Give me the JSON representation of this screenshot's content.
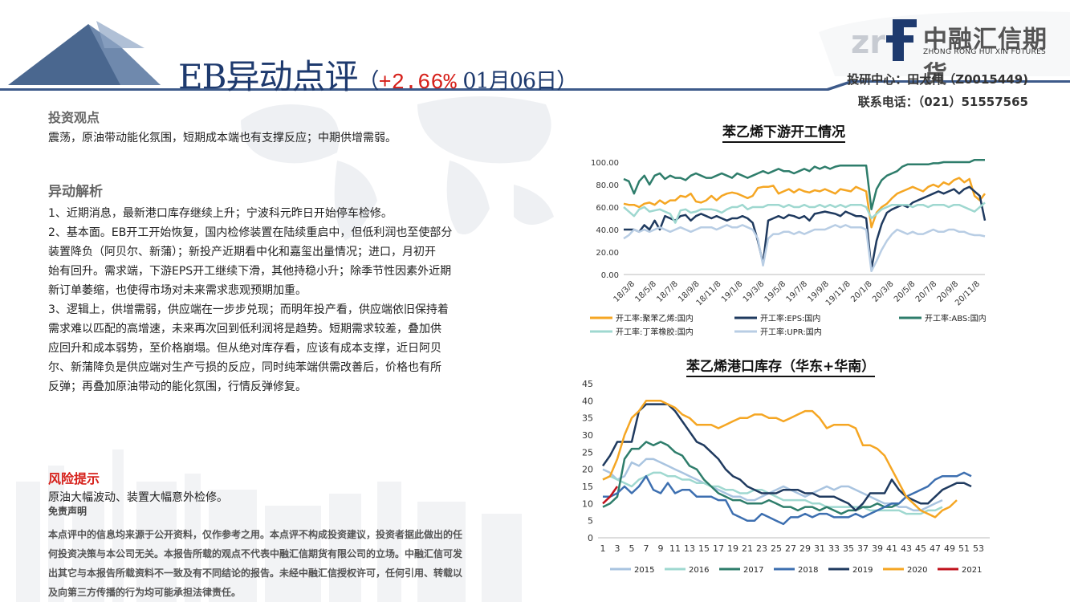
{
  "header": {
    "title_main": "EB异动点评",
    "title_open": "（",
    "change": "+2.66%",
    "date": "01月06日",
    "title_close": "）",
    "researcher": "投研中心：田大伟（Z0015449)",
    "phone": "联系电话：（021）51557565"
  },
  "logo": {
    "cn": "中融汇信期货",
    "en": "ZHONG RONG HUI XIN FUTURES",
    "mark": "zrf"
  },
  "sections": {
    "view_title": "投资观点",
    "view_text": "震荡，原油带动能化氛围，短期成本端也有支撑反应；中期供增需弱。",
    "analysis_title": "异动解析",
    "analysis_lines": [
      "1、近期消息，最新港口库存继续上升；宁波科元昨日开始停车检修。",
      "2、基本面。EB开工开始恢复，国内检修装置在陆续重启中，但低利润也至使部分",
      "装置降负（阿贝尔、新蒲）；新投产近期看中化和嘉玺出量情况；进口，月初开",
      "始有回升。需求端，下游EPS开工继续下滑，其他持稳小升；除季节性因素外近期",
      "新订单萎缩，也使得市场对未来需求悲观预期加重。",
      "3、逻辑上，供增需弱，供应端在一步步兑现；而明年投产看，供应端依旧保持着",
      "需求难以匹配的高增速，未来再次回到低利润将是趋势。短期需求较差，叠加供",
      "应回升和成本弱势，至价格崩塌。但从绝对库存看，应该有成本支撑，近日阿贝",
      "尔、新蒲降负是供应端对生产亏损的反应，同时纯苯端供需改善后，价格也有所",
      "反弹；再叠加原油带动的能化氛围，行情反弹修复。"
    ],
    "risk_title": "风险提示",
    "risk_text": "原油大幅波动、装置大幅意外检修。",
    "disclaimer_title": "免责声明",
    "disclaimer_lines": [
      "本点评中的信息均来源于公开资料，仅作参考之用。本点评不构成投资建议，投资者据此做出的任",
      "何投资决策与本公司无关。本报告所载的观点不代表中融汇信期货有限公司的立场。中融汇信可发",
      "出其它与本报告所载资料不一致及有不同结论的报告。未经中融汇信授权许可，任何引用、转载以",
      "及向第三方传播的行为均可能承担法律责任。"
    ]
  },
  "colors": {
    "title": "#1e3a6e",
    "accent_red": "#d6201a",
    "banner": "#3d5a8a"
  },
  "chart_data": [
    {
      "type": "line",
      "title": "苯乙烯下游开工情况",
      "yticks": [
        "0.00",
        "20.00",
        "40.00",
        "60.00",
        "80.00",
        "100.00"
      ],
      "ylim": [
        0,
        100
      ],
      "x_labels": [
        "18/3/8",
        "18/5/8",
        "18/7/8",
        "18/9/8",
        "18/11/8",
        "19/1/8",
        "19/3/8",
        "19/5/8",
        "19/7/8",
        "19/9/8",
        "19/11/8",
        "20/1/8",
        "20/3/8",
        "20/5/8",
        "20/7/8",
        "20/9/8",
        "20/11/8"
      ],
      "legend_position": "bottom",
      "series": [
        {
          "name": "开工率:聚苯乙烯:国内",
          "color": "#f5a623",
          "values": [
            63,
            62,
            62,
            60,
            63,
            64,
            62,
            66,
            63,
            66,
            66,
            70,
            69,
            72,
            65,
            64,
            66,
            70,
            66,
            70,
            72,
            73,
            72,
            70,
            68,
            70,
            77,
            78,
            78,
            79,
            72,
            74,
            76,
            73,
            76,
            74,
            73,
            75,
            74,
            76,
            74,
            72,
            76,
            75,
            74,
            78,
            76,
            74,
            42,
            55,
            60,
            63,
            68,
            72,
            74,
            76,
            78,
            76,
            74,
            78,
            80,
            78,
            82,
            80,
            84,
            86,
            82,
            85,
            70,
            66,
            72
          ]
        },
        {
          "name": "开工率:EPS:国内",
          "color": "#1f3a5f",
          "values": [
            40,
            40,
            40,
            38,
            44,
            40,
            48,
            40,
            52,
            50,
            48,
            52,
            53,
            48,
            52,
            54,
            52,
            50,
            52,
            50,
            48,
            50,
            50,
            52,
            50,
            46,
            30,
            10,
            48,
            50,
            52,
            50,
            53,
            52,
            50,
            52,
            48,
            54,
            55,
            56,
            55,
            54,
            52,
            56,
            54,
            52,
            52,
            50,
            5,
            30,
            45,
            55,
            58,
            60,
            62,
            60,
            64,
            66,
            68,
            70,
            72,
            74,
            72,
            74,
            76,
            72,
            76,
            78,
            74,
            70,
            48
          ]
        },
        {
          "name": "开工率:ABS:国内",
          "color": "#2e7d6b",
          "values": [
            85,
            83,
            72,
            83,
            88,
            80,
            88,
            90,
            85,
            88,
            86,
            86,
            84,
            88,
            90,
            88,
            86,
            86,
            88,
            90,
            88,
            86,
            90,
            88,
            86,
            88,
            90,
            92,
            90,
            92,
            94,
            92,
            92,
            90,
            92,
            94,
            92,
            96,
            94,
            96,
            94,
            96,
            97,
            97,
            97,
            97,
            97,
            97,
            58,
            76,
            84,
            88,
            90,
            92,
            96,
            98,
            98,
            98,
            98,
            98,
            99,
            99,
            100,
            100,
            100,
            100,
            100,
            100,
            102,
            102,
            102
          ]
        },
        {
          "name": "开工率:丁苯橡胶:国内",
          "color": "#9fd8d0",
          "values": [
            60,
            56,
            52,
            58,
            60,
            56,
            57,
            58,
            56,
            54,
            46,
            57,
            58,
            55,
            56,
            58,
            58,
            58,
            57,
            55,
            58,
            60,
            60,
            62,
            58,
            60,
            60,
            60,
            62,
            62,
            62,
            60,
            62,
            60,
            60,
            62,
            60,
            60,
            62,
            60,
            62,
            60,
            62,
            60,
            62,
            62,
            62,
            60,
            50,
            54,
            58,
            60,
            62,
            62,
            62,
            62,
            60,
            62,
            62,
            60,
            62,
            62,
            62,
            60,
            62,
            62,
            60,
            58,
            56,
            60,
            64
          ]
        },
        {
          "name": "开工率:UPR:国内",
          "color": "#b8cde4",
          "values": [
            32,
            35,
            40,
            38,
            40,
            38,
            40,
            42,
            40,
            38,
            40,
            42,
            40,
            38,
            40,
            42,
            42,
            42,
            40,
            42,
            44,
            42,
            42,
            44,
            42,
            40,
            32,
            8,
            32,
            36,
            36,
            38,
            38,
            36,
            38,
            36,
            38,
            40,
            40,
            40,
            42,
            44,
            42,
            44,
            42,
            42,
            42,
            40,
            3,
            12,
            22,
            30,
            36,
            40,
            38,
            36,
            38,
            36,
            36,
            38,
            40,
            38,
            38,
            40,
            40,
            38,
            38,
            36,
            35,
            35,
            34
          ]
        }
      ]
    },
    {
      "type": "line",
      "title": "苯乙烯港口库存（华东+华南）",
      "ylim": [
        0,
        45
      ],
      "yticks": [
        0,
        5,
        10,
        15,
        20,
        25,
        30,
        35,
        40,
        45
      ],
      "x_labels": [
        "1",
        "3",
        "5",
        "7",
        "9",
        "11",
        "13",
        "15",
        "17",
        "19",
        "21",
        "23",
        "25",
        "27",
        "29",
        "31",
        "33",
        "35",
        "37",
        "39",
        "41",
        "43",
        "45",
        "47",
        "49",
        "51",
        "53"
      ],
      "legend_position": "bottom",
      "series": [
        {
          "name": "2015",
          "color": "#a9c4e0",
          "values": [
            20,
            19,
            17,
            18,
            22,
            21,
            23,
            23,
            22,
            21,
            20,
            19,
            18,
            17,
            16,
            15,
            14,
            13,
            12,
            12,
            11,
            11,
            12,
            13,
            14,
            15,
            14,
            13,
            12,
            13,
            14,
            15,
            14,
            15,
            15,
            14,
            13,
            12,
            11,
            10,
            10,
            9,
            9,
            8,
            8,
            9,
            10,
            11
          ]
        },
        {
          "name": "2016",
          "color": "#9fd8d0",
          "values": [
            17,
            18,
            17,
            16,
            15,
            17,
            18,
            19,
            19,
            18,
            18,
            17,
            17,
            16,
            16,
            15,
            15,
            14,
            14,
            13,
            13,
            14,
            14,
            13,
            12,
            11,
            11,
            11,
            11,
            10,
            10,
            9,
            9,
            9,
            9,
            9,
            9,
            8,
            8,
            8,
            8,
            8,
            7,
            7,
            7,
            8,
            8,
            9
          ]
        },
        {
          "name": "2017",
          "color": "#2e7d6b",
          "values": [
            9,
            10,
            12,
            23,
            26,
            26,
            28,
            27,
            28,
            27,
            25,
            24,
            21,
            20,
            17,
            15,
            13,
            12,
            11,
            11,
            10,
            10,
            10,
            11,
            10,
            9,
            9,
            8,
            9,
            9,
            8,
            9,
            8,
            7,
            8,
            8,
            9,
            9,
            10,
            9,
            9,
            10
          ]
        },
        {
          "name": "2018",
          "color": "#3d6fb0",
          "values": [
            12,
            12,
            13,
            15,
            13,
            15,
            18,
            14,
            13,
            16,
            13,
            14,
            14,
            12,
            12,
            12,
            11,
            11,
            7,
            6,
            5,
            5,
            7,
            6,
            5,
            4,
            6,
            6,
            7,
            6,
            7,
            7,
            6,
            6,
            6,
            7,
            6,
            7,
            8,
            9,
            10,
            10,
            12,
            13,
            14,
            15,
            17,
            18,
            18,
            18,
            19,
            18
          ]
        },
        {
          "name": "2019",
          "color": "#1f3a5f",
          "values": [
            21,
            24,
            28,
            28,
            28,
            37,
            39,
            39,
            39,
            39,
            37,
            34,
            31,
            28,
            27,
            25,
            23,
            20,
            18,
            17,
            15,
            14,
            13,
            13,
            13,
            14,
            14,
            14,
            13,
            13,
            12,
            12,
            12,
            11,
            10,
            8,
            10,
            13,
            13,
            13,
            17,
            14,
            12,
            11,
            10,
            10,
            12,
            14,
            15,
            16,
            16,
            15
          ]
        },
        {
          "name": "2020",
          "color": "#f5a623",
          "values": [
            17,
            18,
            23,
            30,
            35,
            37,
            40,
            40,
            40,
            39,
            38,
            36,
            35,
            33,
            33,
            33,
            32,
            33,
            34,
            35,
            35,
            36,
            36,
            35,
            35,
            34,
            35,
            36,
            37,
            37,
            35,
            32,
            33,
            33,
            33,
            32,
            27,
            27,
            26,
            24,
            20,
            16,
            12,
            10,
            8,
            7,
            6,
            8,
            9,
            11
          ]
        },
        {
          "name": "2021",
          "color": "#c0121c",
          "values": [
            10,
            12,
            15
          ]
        }
      ]
    }
  ]
}
